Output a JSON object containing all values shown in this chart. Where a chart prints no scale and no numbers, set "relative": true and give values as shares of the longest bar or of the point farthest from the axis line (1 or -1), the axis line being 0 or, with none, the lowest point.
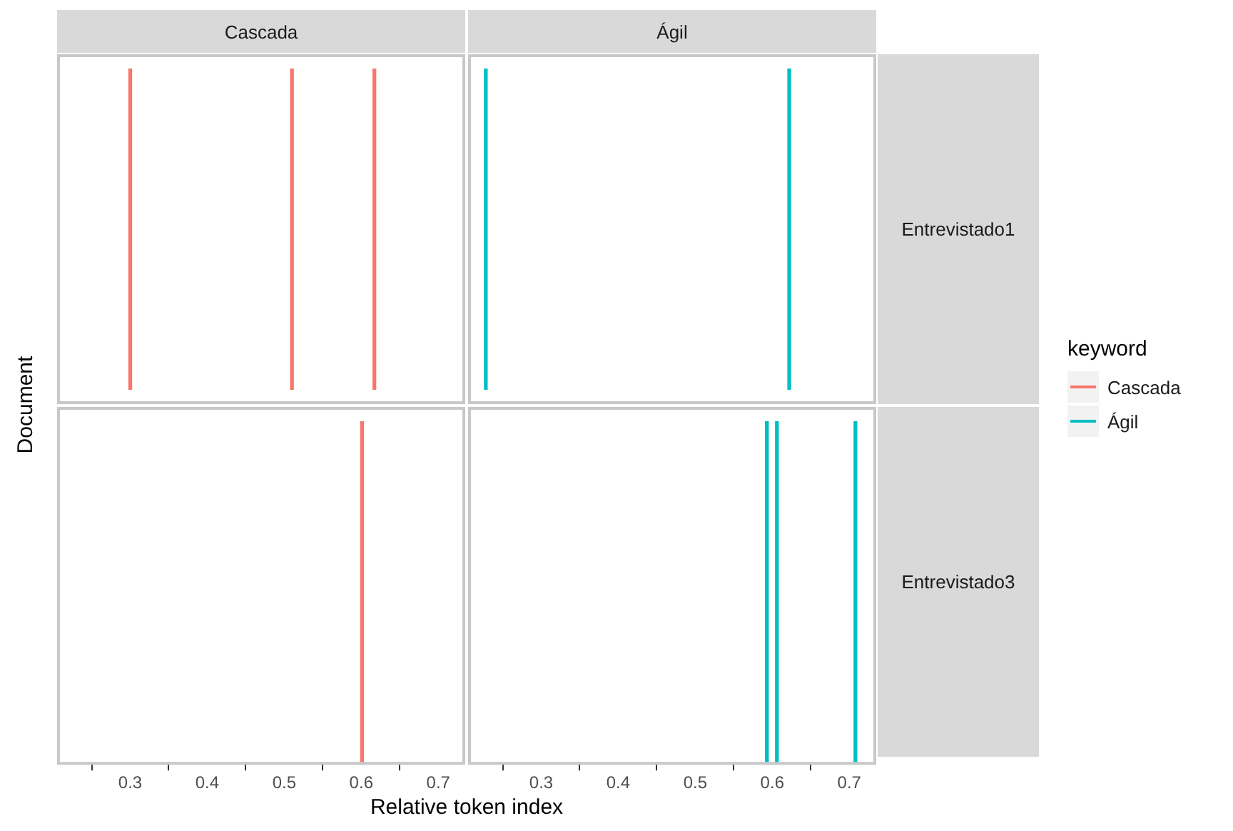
{
  "chart_data": [
    {
      "type": "bar",
      "title": "Cascada",
      "ylabel": "Document",
      "legend_title": "keyword",
      "legend": "right",
      "relative": true,
      "xlim": [
        0.205,
        0.735
      ],
      "xticks": [
        0.3,
        0.4,
        0.5,
        0.6,
        0.7
      ],
      "tick_labels": false,
      "series": [
        {
          "name": "Cascada",
          "color": "#f8766d",
          "x": [
            0.3,
            0.51,
            0.617
          ],
          "values": [
            1,
            1,
            1
          ]
        }
      ]
    },
    {
      "type": "bar",
      "title": "Ágil",
      "y2label": "Entrevistado1",
      "legend": "right",
      "relative": true,
      "xlim": [
        0.205,
        0.735
      ],
      "xticks": [
        0.3,
        0.4,
        0.5,
        0.6,
        0.7
      ],
      "tick_labels": false,
      "series": [
        {
          "name": "Ágil",
          "color": "#00bfc4",
          "x": [
            0.228,
            0.622
          ],
          "values": [
            1,
            1
          ]
        }
      ]
    },
    {
      "type": "bar",
      "xlabel": "Relative token index",
      "relative": true,
      "xlim": [
        0.205,
        0.735
      ],
      "xticks": [
        0.3,
        0.4,
        0.5,
        0.6,
        0.7
      ],
      "tick_labels": "x",
      "series": [
        {
          "color": "#f8766d",
          "x": [
            0.601
          ],
          "values": [
            1
          ]
        }
      ]
    },
    {
      "type": "bar",
      "y2label": "Entrevistado3",
      "relative": true,
      "xlim": [
        0.205,
        0.735
      ],
      "xticks": [
        0.3,
        0.4,
        0.5,
        0.6,
        0.7
      ],
      "tick_labels": "x",
      "series": [
        {
          "color": "#00bfc4",
          "x": [
            0.593,
            0.606,
            0.708
          ],
          "values": [
            1,
            1,
            1
          ]
        }
      ]
    }
  ]
}
